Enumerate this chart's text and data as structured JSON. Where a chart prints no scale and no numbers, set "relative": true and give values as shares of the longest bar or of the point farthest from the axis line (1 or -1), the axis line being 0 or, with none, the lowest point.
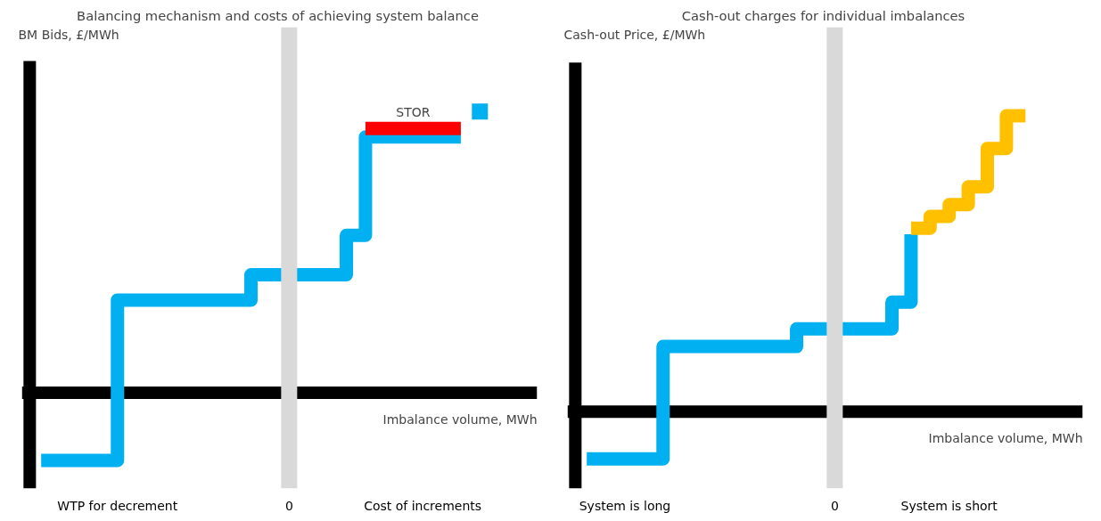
{
  "chart_data": [
    {
      "type": "step",
      "title": "Balancing mechanism and costs of achieving system balance",
      "xlabel": "Imbalance volume, MWh",
      "ylabel": "BM Bids, £/MWh",
      "relative": true,
      "legend": false,
      "grid": false,
      "categories": [
        null,
        null,
        null,
        null,
        "WTP for decrement",
        null,
        null,
        null,
        null,
        null,
        null,
        null,
        null,
        "0",
        null,
        null,
        null,
        null,
        null,
        null,
        "Cost of increments",
        null,
        null,
        null
      ],
      "ref_lines": [
        {
          "axis": "x",
          "value": "0",
          "color": "#d9d9d9"
        }
      ],
      "series": [
        {
          "color": "#00b0f0",
          "values": [
            -0.24,
            -0.24,
            -0.24,
            -0.24,
            0.33,
            0.33,
            0.33,
            0.33,
            0.33,
            0.33,
            0.33,
            0.42,
            0.42,
            0.42,
            0.42,
            0.42,
            0.56,
            0.91,
            0.91,
            0.91,
            0.91,
            0.91,
            0.91,
            null
          ]
        },
        {
          "name": "STOR",
          "color": "#ff0000",
          "values": [
            null,
            null,
            null,
            null,
            null,
            null,
            null,
            null,
            null,
            null,
            null,
            null,
            null,
            null,
            null,
            null,
            null,
            0.94,
            0.94,
            0.94,
            0.94,
            0.94,
            0.94,
            null
          ]
        },
        {
          "type": "scatter",
          "marker": "square",
          "color": "#00b0f0",
          "values": [
            null,
            null,
            null,
            null,
            null,
            null,
            null,
            null,
            null,
            null,
            null,
            null,
            null,
            null,
            null,
            null,
            null,
            null,
            null,
            null,
            null,
            null,
            null,
            1.0
          ]
        }
      ]
    },
    {
      "type": "step",
      "title": "Cash-out charges for individual imbalances",
      "xlabel": "Imbalance volume, MWh",
      "ylabel": "Cash-out Price, £/MWh",
      "relative": true,
      "legend": false,
      "grid": false,
      "categories": [
        null,
        null,
        "System is long",
        null,
        null,
        null,
        null,
        null,
        null,
        null,
        null,
        null,
        null,
        "0",
        null,
        null,
        null,
        null,
        null,
        "System is short",
        null,
        null,
        null,
        null
      ],
      "ref_lines": [
        {
          "axis": "x",
          "value": "0",
          "color": "#d9d9d9"
        }
      ],
      "series": [
        {
          "color": "#00b0f0",
          "values": [
            -0.16,
            -0.16,
            -0.16,
            -0.16,
            0.22,
            0.22,
            0.22,
            0.22,
            0.22,
            0.22,
            0.22,
            0.28,
            0.28,
            0.28,
            0.28,
            0.28,
            0.37,
            0.6,
            null,
            null,
            null,
            null,
            null,
            null
          ]
        },
        {
          "color": "#ffc000",
          "values": [
            null,
            null,
            null,
            null,
            null,
            null,
            null,
            null,
            null,
            null,
            null,
            null,
            null,
            null,
            null,
            null,
            null,
            0.62,
            0.66,
            0.7,
            0.76,
            0.89,
            1.0,
            1.0
          ]
        }
      ]
    }
  ]
}
